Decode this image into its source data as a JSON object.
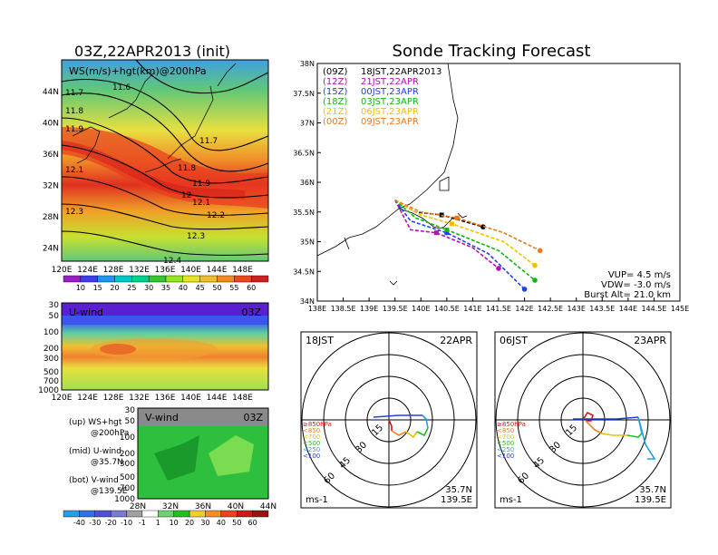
{
  "left": {
    "title": "03Z,22APR2013 (init)",
    "top_panel": {
      "label": "WS(m/s)+hgt(km)@200hPa",
      "lat_ticks": [
        "44N",
        "40N",
        "36N",
        "32N",
        "28N",
        "24N"
      ],
      "lon_ticks": [
        "120E",
        "124E",
        "128E",
        "132E",
        "136E",
        "140E",
        "144E",
        "148E"
      ],
      "contour_labels": [
        "11.6",
        "11.7",
        "11.8",
        "11.9",
        "12.1",
        "12.3",
        "11.7",
        "11.8",
        "11.9",
        "12",
        "12.1",
        "12.2",
        "12.3",
        "12.4"
      ],
      "colorbar_ticks": [
        "10",
        "15",
        "20",
        "25",
        "30",
        "35",
        "40",
        "45",
        "50",
        "55",
        "60"
      ],
      "colorbar_colors": [
        "#9b1fc8",
        "#3c3cf0",
        "#1e96f0",
        "#00c8c8",
        "#00d28c",
        "#33c833",
        "#96e61e",
        "#e6e61e",
        "#f0be28",
        "#f08c1e",
        "#f0461e",
        "#d21e1e"
      ]
    },
    "mid_panel": {
      "label": "U-wind",
      "time": "03Z",
      "p_ticks": [
        "30",
        "50",
        "100",
        "200",
        "300",
        "500",
        "700",
        "1000"
      ],
      "lon_ticks": [
        "120E",
        "124E",
        "128E",
        "132E",
        "136E",
        "140E",
        "144E",
        "148E"
      ]
    },
    "bottom_panel": {
      "label": "V-wind",
      "time": "03Z",
      "p_ticks": [
        "30",
        "50",
        "100",
        "200",
        "300",
        "500",
        "700",
        "1000"
      ],
      "lat_ticks": [
        "28N",
        "32N",
        "36N",
        "40N",
        "44N"
      ],
      "colorbar_ticks": [
        "-40",
        "-30",
        "-20",
        "-10",
        "-1",
        "1",
        "10",
        "20",
        "30",
        "40",
        "50",
        "60"
      ]
    },
    "legend": {
      "up": "(up) WS+hgt",
      "up2": "@200hPa",
      "mid": "(mid) U-wind",
      "mid2": "@35.7N",
      "bot": "(bot) V-wind",
      "bot2": "@139.5E"
    }
  },
  "right": {
    "title": "Sonde Tracking Forecast",
    "lat_ticks": [
      "38N",
      "37.5N",
      "37N",
      "36.5N",
      "36N",
      "35.5N",
      "35N",
      "34.5N",
      "34N"
    ],
    "lon_ticks": [
      "138E",
      "138.5E",
      "139E",
      "139.5E",
      "140E",
      "140.5E",
      "141E",
      "141.5E",
      "142E",
      "142.5E",
      "143E",
      "143.5E",
      "144E",
      "144.5E",
      "145E"
    ],
    "runs": [
      {
        "utc": "(09Z)",
        "jst": "18JST,22APR2013",
        "color": "#000000"
      },
      {
        "utc": "(12Z)",
        "jst": "21JST,22APR",
        "color": "#b40fb4"
      },
      {
        "utc": "(15Z)",
        "jst": "00JST,23APR",
        "color": "#2040e8"
      },
      {
        "utc": "(18Z)",
        "jst": "03JST,23APR",
        "color": "#10b810"
      },
      {
        "utc": "(21Z)",
        "jst": "06JST,23APR",
        "color": "#f0c000"
      },
      {
        "utc": "(00Z)",
        "jst": "09JST,23APR",
        "color": "#f07818"
      }
    ],
    "params": {
      "vup": "VUP= 4.5 m/s",
      "vdw": "VDW= -3.0 m/s",
      "burst": "Burst Alt= 21.0 km"
    },
    "hodo1": {
      "time": "18JST",
      "date": "22APR",
      "lat": "35.7N",
      "lon": "139.5E",
      "unit": "ms-1",
      "rings": [
        "15",
        "30",
        "45",
        "60"
      ]
    },
    "hodo2": {
      "time": "06JST",
      "date": "23APR",
      "lat": "35.7N",
      "lon": "139.5E",
      "unit": "ms-1",
      "rings": [
        "15",
        "30",
        "45",
        "60"
      ]
    },
    "hodo_legend": [
      "≥850hPa",
      "<850",
      "<700",
      "<500",
      "<250",
      "<100"
    ],
    "hodo_legend_colors": [
      "#e01010",
      "#f08020",
      "#e8c000",
      "#20c020",
      "#20a0e0",
      "#2040e0"
    ]
  },
  "chart_data": [
    {
      "type": "heatmap",
      "title": "03Z,22APR2013 (init)",
      "subtitle": "WS(m/s)+hgt(km)@200hPa",
      "xlim": [
        120,
        150
      ],
      "ylim": [
        22,
        47
      ],
      "contours_hgt_km": [
        11.6,
        11.7,
        11.8,
        11.9,
        12,
        12.1,
        12.2,
        12.3,
        12.4
      ],
      "jet_max_ws": 60
    },
    {
      "type": "line",
      "title": "Sonde Tracking Forecast",
      "series": [
        {
          "name": "18JST,22APR2013",
          "x": [
            139.5,
            139.9,
            140.4,
            140.8,
            141.2
          ],
          "y": [
            35.7,
            35.5,
            35.45,
            35.35,
            35.25
          ]
        },
        {
          "name": "21JST,22APR",
          "x": [
            139.5,
            139.8,
            140.3,
            141.0,
            141.5
          ],
          "y": [
            35.7,
            35.2,
            35.15,
            34.9,
            34.55
          ]
        },
        {
          "name": "00JST,23APR",
          "x": [
            139.5,
            139.8,
            140.5,
            141.3,
            142.0
          ],
          "y": [
            35.7,
            35.35,
            35.15,
            34.8,
            34.2
          ]
        },
        {
          "name": "03JST,23APR",
          "x": [
            139.5,
            139.9,
            140.5,
            141.5,
            142.2
          ],
          "y": [
            35.7,
            35.4,
            35.2,
            34.85,
            34.35
          ]
        },
        {
          "name": "06JST,23APR",
          "x": [
            139.5,
            140.0,
            140.6,
            141.6,
            142.2
          ],
          "y": [
            35.7,
            35.45,
            35.3,
            35.0,
            34.6
          ]
        },
        {
          "name": "09JST,23APR",
          "x": [
            139.5,
            140.0,
            140.7,
            141.6,
            142.3
          ],
          "y": [
            35.7,
            35.5,
            35.4,
            35.15,
            34.85
          ]
        }
      ],
      "xlim": [
        138,
        145
      ],
      "ylim": [
        34,
        38
      ]
    }
  ]
}
